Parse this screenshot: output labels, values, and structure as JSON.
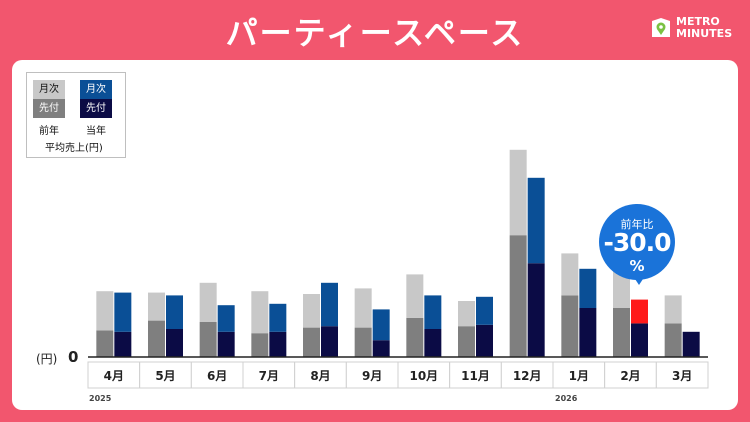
{
  "header": {
    "title": "パーティースペース"
  },
  "logo": {
    "line1": "METRO",
    "line2": "MINUTES"
  },
  "legend": {
    "prev_monthly": "月次",
    "prev_advance": "先付",
    "curr_monthly": "月次",
    "curr_advance": "先付",
    "prev_caption": "前年",
    "curr_caption": "当年",
    "note": "平均売上(円)"
  },
  "callout": {
    "label": "前年比",
    "value": "-30.0",
    "unit": "%"
  },
  "axis": {
    "ylabel": "(円)",
    "zero": "0",
    "year_start": "2025",
    "year_next": "2026"
  },
  "colors": {
    "prev_monthly": "#c8c8c8",
    "prev_advance": "#7f7f7f",
    "curr_monthly": "#0a4f96",
    "curr_advance": "#0b0b45",
    "highlight": "#ff1a1a",
    "callout": "#1a73d9"
  },
  "chart_data": {
    "type": "bar",
    "stacked": true,
    "categories": [
      "4月",
      "5月",
      "6月",
      "7月",
      "8月",
      "9月",
      "10月",
      "11月",
      "12月",
      "1月",
      "2月",
      "3月"
    ],
    "series": [
      {
        "name": "前年 先付",
        "group": "前年",
        "values": [
          19,
          26,
          25,
          17,
          21,
          21,
          28,
          22,
          87,
          44,
          35,
          24
        ]
      },
      {
        "name": "前年 月次",
        "group": "前年",
        "values": [
          28,
          20,
          28,
          30,
          24,
          28,
          31,
          18,
          61,
          30,
          26,
          20
        ]
      },
      {
        "name": "当年 先付",
        "group": "当年",
        "values": [
          18,
          20,
          18,
          18,
          22,
          12,
          20,
          23,
          67,
          35,
          24,
          18
        ]
      },
      {
        "name": "当年 月次",
        "group": "当年",
        "values": [
          28,
          24,
          19,
          20,
          31,
          22,
          24,
          20,
          61,
          28,
          17,
          0
        ]
      }
    ],
    "highlight": {
      "category": "2月",
      "series": "当年 月次"
    },
    "ylim": [
      0,
      150
    ]
  }
}
